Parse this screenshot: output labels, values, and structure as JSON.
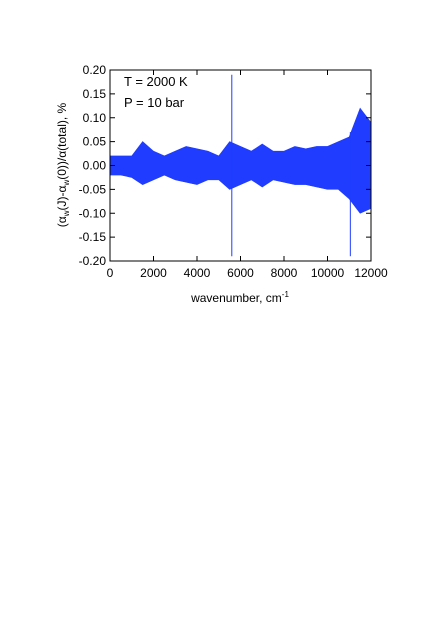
{
  "chart_data": {
    "type": "band",
    "annotations": [
      "T = 2000 K",
      "P = 10 bar"
    ],
    "xlabel": [
      "wavenumber, cm",
      "-1"
    ],
    "ylabel": [
      "(α",
      "w",
      "(J)-α",
      "w",
      "(0))/α(total), %"
    ],
    "color": "#1f3cff",
    "x": [
      0,
      500,
      1000,
      1500,
      2000,
      2500,
      3000,
      3500,
      4000,
      4500,
      5000,
      5500,
      6000,
      6500,
      7000,
      7500,
      8000,
      8500,
      9000,
      9500,
      10000,
      10500,
      11000,
      11500,
      12000
    ],
    "high": [
      0.02,
      0.02,
      0.02,
      0.05,
      0.03,
      0.02,
      0.03,
      0.04,
      0.035,
      0.03,
      0.02,
      0.05,
      0.04,
      0.03,
      0.045,
      0.03,
      0.03,
      0.04,
      0.035,
      0.04,
      0.04,
      0.05,
      0.06,
      0.12,
      0.09
    ],
    "low": [
      -0.02,
      -0.02,
      -0.025,
      -0.04,
      -0.03,
      -0.02,
      -0.03,
      -0.035,
      -0.04,
      -0.03,
      -0.03,
      -0.05,
      -0.04,
      -0.03,
      -0.045,
      -0.03,
      -0.035,
      -0.04,
      -0.04,
      -0.045,
      -0.05,
      -0.05,
      -0.07,
      -0.1,
      -0.09
    ],
    "spikes": {
      "x": [
        5600,
        11050
      ],
      "high": [
        0.19,
        0.07
      ],
      "low": [
        -0.19,
        -0.19
      ]
    },
    "xlim": [
      0,
      12000
    ],
    "xticks": [
      0,
      2000,
      4000,
      6000,
      8000,
      10000,
      12000
    ],
    "ylim": [
      -0.2,
      0.2
    ],
    "yticks": [
      {
        "value": -0.2,
        "label": "-0.20"
      },
      {
        "value": -0.15,
        "label": "-0.15"
      },
      {
        "value": -0.1,
        "label": "-0.10"
      },
      {
        "value": -0.05,
        "label": "-0.05"
      },
      {
        "value": 0,
        "label": "0.00"
      },
      {
        "value": 0.05,
        "label": "0.05"
      },
      {
        "value": 0.1,
        "label": "0.10"
      },
      {
        "value": 0.15,
        "label": "0.15"
      },
      {
        "value": 0.2,
        "label": "0.20"
      }
    ]
  }
}
